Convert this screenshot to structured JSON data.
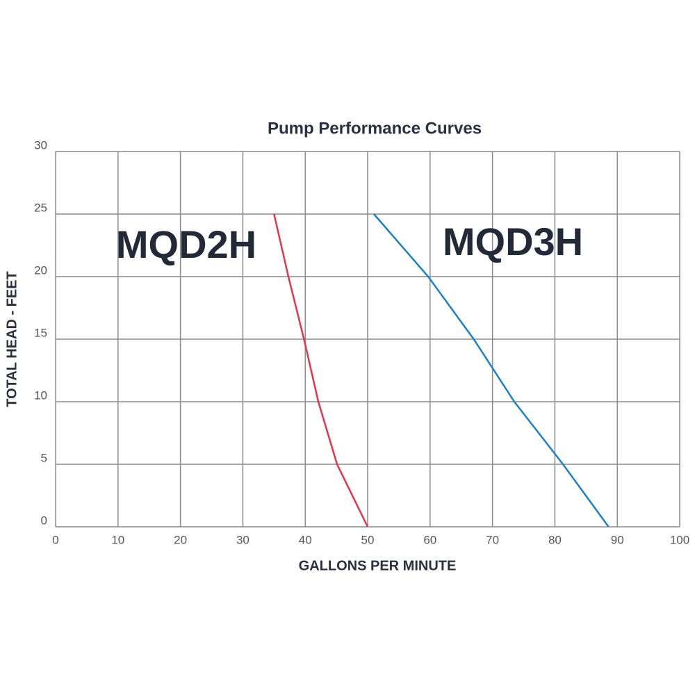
{
  "chart_data": {
    "type": "line",
    "title": "Pump Performance Curves",
    "x_label": "GALLONS PER MINUTE",
    "y_label": "TOTAL HEAD - FEET",
    "series": [
      {
        "name": "MQD2H",
        "color": "#e8334a",
        "x": [
          35,
          37.3,
          39.8,
          42.1,
          45.1,
          50
        ],
        "values": [
          25,
          20,
          15,
          10,
          5,
          0
        ]
      },
      {
        "name": "MQD3H",
        "color": "#1f7fc4",
        "x": [
          51,
          59.7,
          67,
          73.5,
          81.3,
          88.6
        ],
        "values": [
          25,
          20,
          15,
          10,
          5,
          0
        ]
      }
    ],
    "xlim": [
      0,
      100
    ],
    "xticks": [
      0,
      10,
      20,
      30,
      40,
      50,
      60,
      70,
      80,
      90,
      100
    ],
    "ylim": [
      0,
      30
    ],
    "yticks": [
      0,
      5,
      10,
      15,
      20,
      25,
      30
    ],
    "grid": true
  }
}
